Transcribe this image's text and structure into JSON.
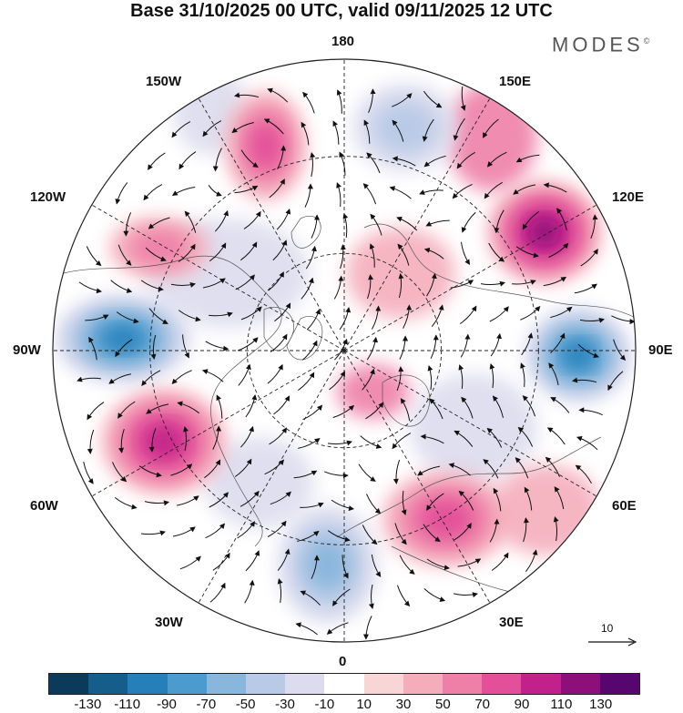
{
  "title": "Base 31/10/2025 00 UTC, valid 09/11/2025 12 UTC",
  "brand": {
    "name": "MODES",
    "mark": "©"
  },
  "map_labels": {
    "top": "180",
    "bottom": "0",
    "left": "90W",
    "right": "90E",
    "upper_left": "150W",
    "upper_right": "150E",
    "mid_upper_left": "120W",
    "mid_upper_right": "120E",
    "mid_lower_left": "60W",
    "mid_lower_right": "60E",
    "lower_left": "30W",
    "lower_right": "30E"
  },
  "reference_vector": {
    "label": "10"
  },
  "colorbar": {
    "colors": [
      "#0b3a5a",
      "#155e8c",
      "#2580ba",
      "#4c9bcf",
      "#88b6dc",
      "#b8cae6",
      "#dcdcee",
      "#ffffff",
      "#f9d6d6",
      "#f4adbb",
      "#ee80a8",
      "#e34f99",
      "#c2208a",
      "#8c0f7a",
      "#56066e"
    ],
    "tick_labels": [
      "-130",
      "-110",
      "-90",
      "-70",
      "-50",
      "-30",
      "-10",
      "10",
      "30",
      "50",
      "70",
      "90",
      "110",
      "130"
    ]
  },
  "anomaly_centers": [
    {
      "name": "positive-120e",
      "lon_label": "120E",
      "value": 110
    },
    {
      "name": "negative-90e",
      "lon_label": "90E",
      "value": -110
    },
    {
      "name": "negative-90w",
      "lon_label": "90W",
      "value": -110
    },
    {
      "name": "positive-60w",
      "lon_label": "60W",
      "value": 90
    },
    {
      "name": "positive-150w",
      "lon_label": "150W",
      "value": 70
    },
    {
      "name": "negative-180",
      "lon_label": "180",
      "value": -50
    },
    {
      "name": "negative-0",
      "lon_label": "0",
      "value": -70
    },
    {
      "name": "positive-60e",
      "lon_label": "60E",
      "value": 70
    },
    {
      "name": "positive-120w",
      "lon_label": "120W",
      "value": 50
    }
  ]
}
